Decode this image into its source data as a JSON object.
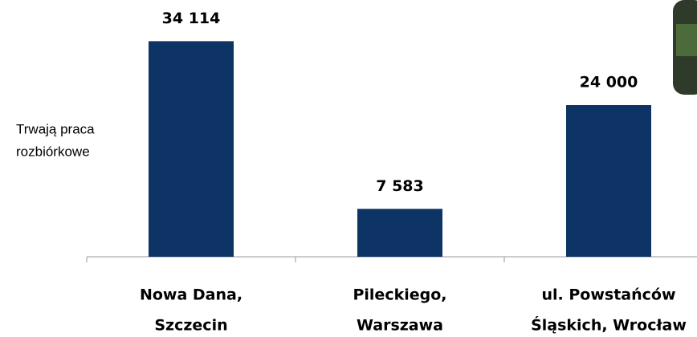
{
  "chart_data": {
    "type": "bar",
    "categories": [
      [
        "Nowa Dana,",
        "Szczecin"
      ],
      [
        "Pileckiego,",
        "Warszawa"
      ],
      [
        "ul. Powstańców",
        "Śląskich, Wrocław"
      ]
    ],
    "values": [
      34114,
      7583,
      24000
    ],
    "value_labels": [
      "34 114",
      "7 583",
      "24 000"
    ],
    "color": "#0d3464",
    "ylim": [
      0,
      40000
    ],
    "annotation": [
      "Trwają praca",
      "rozbiórkowe"
    ]
  }
}
